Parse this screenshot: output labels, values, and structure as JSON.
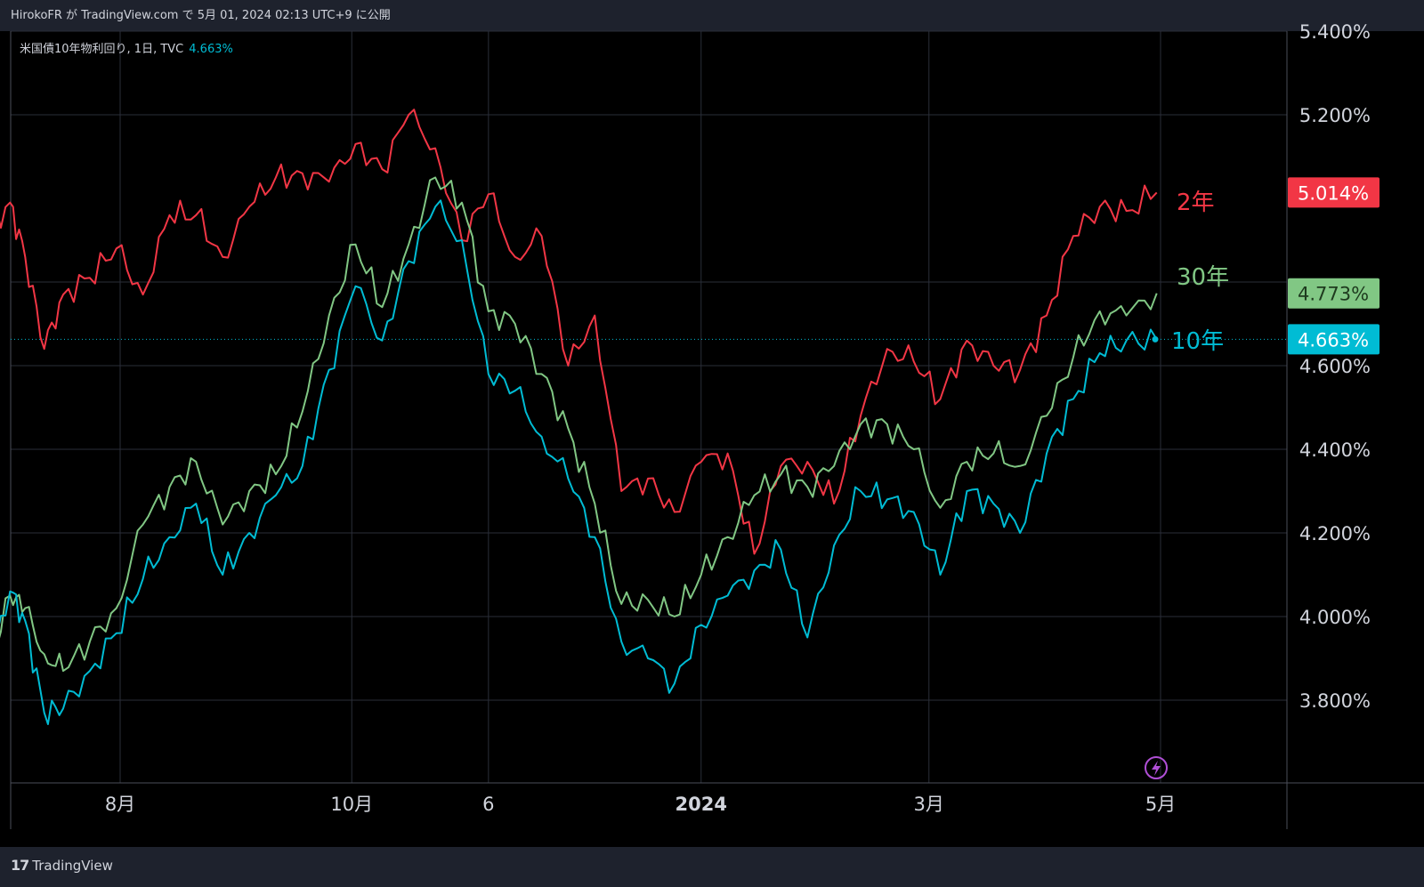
{
  "header": {
    "publish_text": "HirokoFR が TradingView.com で 5月 01, 2024 02:13 UTC+9 に公開"
  },
  "legend": {
    "symbol_text": "米国債10年物利回り, 1日, TVC",
    "value": "4.663%"
  },
  "footer": {
    "brand": "TradingView",
    "logo": "17"
  },
  "icons": {
    "flash": "lightning-icon"
  },
  "colors": {
    "two_year": "#f23645",
    "thirty_year": "#81c784",
    "ten_year": "#00bcd4",
    "background": "#000000",
    "grid": "#2a2e39"
  },
  "chart_data": {
    "type": "line",
    "y_ticks": [
      "5.400%",
      "5.200%",
      "4.600%",
      "4.400%",
      "4.200%",
      "4.000%",
      "3.800%"
    ],
    "ylim": [
      3.6,
      5.41
    ],
    "x_ticks": [
      {
        "label": "8月",
        "date": "2023-08-01",
        "bold": false
      },
      {
        "label": "10月",
        "date": "2023-10-01",
        "bold": false
      },
      {
        "label": "6",
        "date": "2023-11-06",
        "bold": false
      },
      {
        "label": "2024",
        "date": "2024-01-01",
        "bold": true
      },
      {
        "label": "3月",
        "date": "2024-03-01",
        "bold": false
      },
      {
        "label": "5月",
        "date": "2024-05-01",
        "bold": false
      }
    ],
    "xlim": [
      "2023-06-27",
      "2024-05-20"
    ],
    "series": [
      {
        "name": "2年",
        "color": "#f23645",
        "last": "5.014%",
        "points": [
          [
            "2023-06-27",
            4.92
          ],
          [
            "2023-07-03",
            4.99
          ],
          [
            "2023-07-07",
            4.86
          ],
          [
            "2023-07-12",
            4.64
          ],
          [
            "2023-07-17",
            4.77
          ],
          [
            "2023-07-24",
            4.81
          ],
          [
            "2023-07-31",
            4.88
          ],
          [
            "2023-08-07",
            4.77
          ],
          [
            "2023-08-14",
            4.96
          ],
          [
            "2023-08-21",
            4.96
          ],
          [
            "2023-08-28",
            4.86
          ],
          [
            "2023-09-04",
            4.98
          ],
          [
            "2023-09-11",
            5.05
          ],
          [
            "2023-09-18",
            5.06
          ],
          [
            "2023-09-25",
            5.04
          ],
          [
            "2023-10-02",
            5.13
          ],
          [
            "2023-10-09",
            5.07
          ],
          [
            "2023-10-16",
            5.2
          ],
          [
            "2023-10-23",
            5.12
          ],
          [
            "2023-10-30",
            4.9
          ],
          [
            "2023-11-06",
            5.01
          ],
          [
            "2023-11-13",
            4.86
          ],
          [
            "2023-11-20",
            4.91
          ],
          [
            "2023-11-27",
            4.6
          ],
          [
            "2023-12-04",
            4.72
          ],
          [
            "2023-12-11",
            4.3
          ],
          [
            "2023-12-18",
            4.33
          ],
          [
            "2023-12-25",
            4.25
          ],
          [
            "2024-01-01",
            4.37
          ],
          [
            "2024-01-08",
            4.39
          ],
          [
            "2024-01-15",
            4.15
          ],
          [
            "2024-01-22",
            4.36
          ],
          [
            "2024-01-29",
            4.37
          ],
          [
            "2024-02-05",
            4.27
          ],
          [
            "2024-02-12",
            4.48
          ],
          [
            "2024-02-19",
            4.64
          ],
          [
            "2024-02-26",
            4.61
          ],
          [
            "2024-03-04",
            4.52
          ],
          [
            "2024-03-11",
            4.66
          ],
          [
            "2024-03-18",
            4.6
          ],
          [
            "2024-03-25",
            4.59
          ],
          [
            "2024-04-01",
            4.72
          ],
          [
            "2024-04-08",
            4.91
          ],
          [
            "2024-04-15",
            4.98
          ],
          [
            "2024-04-22",
            4.97
          ],
          [
            "2024-04-30",
            5.014
          ]
        ]
      },
      {
        "name": "30年",
        "color": "#81c784",
        "last": "4.773%",
        "points": [
          [
            "2023-06-27",
            3.86
          ],
          [
            "2023-07-03",
            4.05
          ],
          [
            "2023-07-07",
            4.02
          ],
          [
            "2023-07-12",
            3.91
          ],
          [
            "2023-07-17",
            3.87
          ],
          [
            "2023-07-24",
            3.94
          ],
          [
            "2023-07-31",
            4.02
          ],
          [
            "2023-08-07",
            4.22
          ],
          [
            "2023-08-14",
            4.31
          ],
          [
            "2023-08-21",
            4.37
          ],
          [
            "2023-08-28",
            4.22
          ],
          [
            "2023-09-04",
            4.3
          ],
          [
            "2023-09-11",
            4.34
          ],
          [
            "2023-09-18",
            4.49
          ],
          [
            "2023-09-25",
            4.72
          ],
          [
            "2023-10-02",
            4.89
          ],
          [
            "2023-10-09",
            4.74
          ],
          [
            "2023-10-16",
            4.89
          ],
          [
            "2023-10-23",
            5.05
          ],
          [
            "2023-10-30",
            4.99
          ],
          [
            "2023-11-06",
            4.73
          ],
          [
            "2023-11-13",
            4.7
          ],
          [
            "2023-11-20",
            4.58
          ],
          [
            "2023-11-27",
            4.45
          ],
          [
            "2023-12-04",
            4.27
          ],
          [
            "2023-12-11",
            4.03
          ],
          [
            "2023-12-18",
            4.04
          ],
          [
            "2023-12-25",
            4.0
          ],
          [
            "2024-01-01",
            4.1
          ],
          [
            "2024-01-08",
            4.19
          ],
          [
            "2024-01-15",
            4.29
          ],
          [
            "2024-01-22",
            4.34
          ],
          [
            "2024-01-29",
            4.31
          ],
          [
            "2024-02-05",
            4.36
          ],
          [
            "2024-02-12",
            4.46
          ],
          [
            "2024-02-19",
            4.46
          ],
          [
            "2024-02-26",
            4.4
          ],
          [
            "2024-03-04",
            4.26
          ],
          [
            "2024-03-11",
            4.37
          ],
          [
            "2024-03-18",
            4.39
          ],
          [
            "2024-03-25",
            4.36
          ],
          [
            "2024-04-01",
            4.48
          ],
          [
            "2024-04-08",
            4.62
          ],
          [
            "2024-04-15",
            4.73
          ],
          [
            "2024-04-22",
            4.72
          ],
          [
            "2024-04-30",
            4.773
          ]
        ]
      },
      {
        "name": "10年",
        "color": "#00bcd4",
        "last": "4.663%",
        "points": [
          [
            "2023-06-27",
            3.86
          ],
          [
            "2023-07-03",
            4.06
          ],
          [
            "2023-07-07",
            3.99
          ],
          [
            "2023-07-12",
            3.77
          ],
          [
            "2023-07-17",
            3.78
          ],
          [
            "2023-07-24",
            3.87
          ],
          [
            "2023-07-31",
            3.96
          ],
          [
            "2023-08-07",
            4.09
          ],
          [
            "2023-08-14",
            4.19
          ],
          [
            "2023-08-21",
            4.27
          ],
          [
            "2023-08-28",
            4.1
          ],
          [
            "2023-09-04",
            4.2
          ],
          [
            "2023-09-11",
            4.29
          ],
          [
            "2023-09-18",
            4.36
          ],
          [
            "2023-09-25",
            4.59
          ],
          [
            "2023-10-02",
            4.79
          ],
          [
            "2023-10-09",
            4.66
          ],
          [
            "2023-10-16",
            4.85
          ],
          [
            "2023-10-23",
            4.98
          ],
          [
            "2023-10-30",
            4.9
          ],
          [
            "2023-11-06",
            4.58
          ],
          [
            "2023-11-13",
            4.54
          ],
          [
            "2023-11-20",
            4.43
          ],
          [
            "2023-11-27",
            4.33
          ],
          [
            "2023-12-04",
            4.19
          ],
          [
            "2023-12-11",
            3.94
          ],
          [
            "2023-12-18",
            3.9
          ],
          [
            "2023-12-25",
            3.84
          ],
          [
            "2024-01-01",
            3.98
          ],
          [
            "2024-01-08",
            4.05
          ],
          [
            "2024-01-15",
            4.11
          ],
          [
            "2024-01-22",
            4.16
          ],
          [
            "2024-01-29",
            3.95
          ],
          [
            "2024-02-05",
            4.17
          ],
          [
            "2024-02-12",
            4.3
          ],
          [
            "2024-02-19",
            4.28
          ],
          [
            "2024-02-26",
            4.25
          ],
          [
            "2024-03-04",
            4.1
          ],
          [
            "2024-03-11",
            4.3
          ],
          [
            "2024-03-18",
            4.27
          ],
          [
            "2024-03-25",
            4.2
          ],
          [
            "2024-04-01",
            4.39
          ],
          [
            "2024-04-08",
            4.52
          ],
          [
            "2024-04-15",
            4.63
          ],
          [
            "2024-04-22",
            4.66
          ],
          [
            "2024-04-30",
            4.663
          ]
        ]
      }
    ],
    "price_line": 4.663,
    "grid": true
  }
}
